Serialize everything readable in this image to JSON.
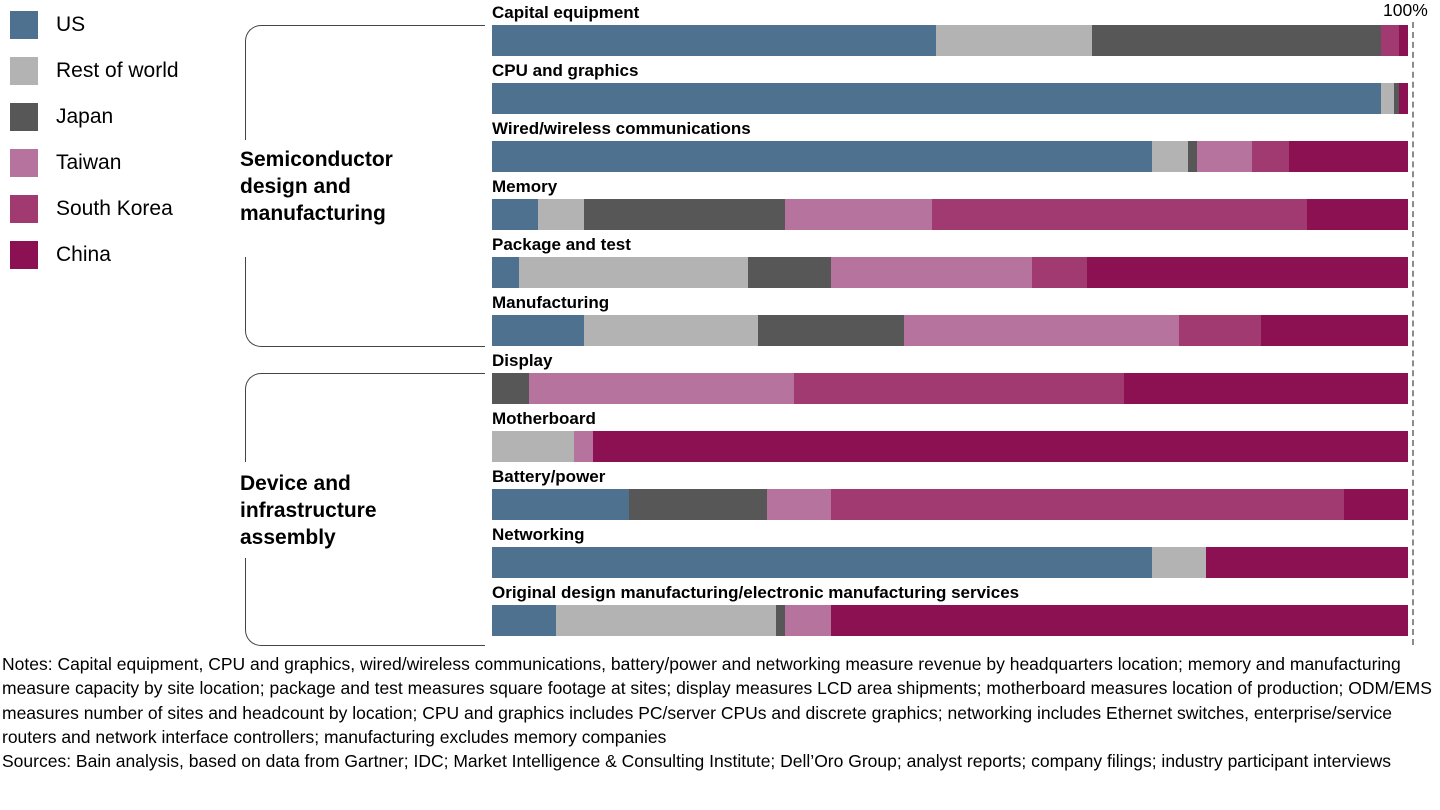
{
  "legend": {
    "items": [
      {
        "label": "US",
        "color": "#4F7190"
      },
      {
        "label": "Rest of world",
        "color": "#B3B3B3"
      },
      {
        "label": "Japan",
        "color": "#575757"
      },
      {
        "label": "Taiwan",
        "color": "#B5739E"
      },
      {
        "label": "South Korea",
        "color": "#A23A72"
      },
      {
        "label": "China",
        "color": "#8B1152"
      }
    ]
  },
  "axis": {
    "max_label": "100%"
  },
  "chart_data": {
    "type": "bar",
    "orientation": "horizontal",
    "stacked": true,
    "unit": "percent",
    "xlim": [
      0,
      100
    ],
    "grid": false,
    "legend_position": "top-left",
    "categories": [
      "Capital equipment",
      "CPU and graphics",
      "Wired/wireless communications",
      "Memory",
      "Package and test",
      "Manufacturing",
      "Display",
      "Motherboard",
      "Battery/power",
      "Networking",
      "Original design manufacturing/electronic manufacturing services"
    ],
    "series": [
      {
        "name": "US",
        "color": "#4F7190",
        "values": [
          48.5,
          97,
          72,
          5,
          3,
          10,
          0,
          0,
          15,
          72,
          7
        ]
      },
      {
        "name": "Rest of world",
        "color": "#B3B3B3",
        "values": [
          17,
          1.5,
          4,
          5,
          25,
          19,
          0,
          9,
          0,
          6,
          24
        ]
      },
      {
        "name": "Japan",
        "color": "#575757",
        "values": [
          31.5,
          0.5,
          1,
          22,
          9,
          16,
          4,
          0,
          15,
          0,
          1
        ]
      },
      {
        "name": "Taiwan",
        "color": "#B5739E",
        "values": [
          0,
          0,
          6,
          16,
          22,
          30,
          29,
          2,
          7,
          0,
          5
        ]
      },
      {
        "name": "South Korea",
        "color": "#A23A72",
        "values": [
          2,
          0,
          4,
          41,
          6,
          9,
          36,
          0,
          56,
          0,
          0
        ]
      },
      {
        "name": "China",
        "color": "#8B1152",
        "values": [
          1,
          1,
          13,
          11,
          35,
          16,
          31,
          89,
          7,
          22,
          63
        ]
      }
    ],
    "groups": [
      {
        "label": "Semiconductor design and manufacturing",
        "categories": [
          "Capital equipment",
          "CPU and graphics",
          "Wired/wireless communications",
          "Memory",
          "Package and test",
          "Manufacturing"
        ]
      },
      {
        "label": "Device and infrastructure assembly",
        "categories": [
          "Display",
          "Motherboard",
          "Battery/power",
          "Networking",
          "Original design manufacturing/electronic manufacturing services"
        ]
      }
    ]
  },
  "notes": {
    "notes_text": "Notes: Capital equipment, CPU and graphics, wired/wireless communications, battery/power and networking measure revenue by headquarters location; memory and manufacturing measure capacity by site location; package and test measures square footage at sites; display measures LCD area shipments; motherboard measures location of production; ODM/EMS measures number of sites and headcount by location; CPU and graphics includes PC/server CPUs and discrete graphics; networking includes Ethernet switches, enterprise/service routers and network interface controllers; manufacturing excludes memory companies",
    "sources_text": "Sources: Bain analysis, based on data from Gartner; IDC; Market Intelligence & Consulting Institute; Dell’Oro Group; analyst reports; company filings; industry participant interviews"
  }
}
